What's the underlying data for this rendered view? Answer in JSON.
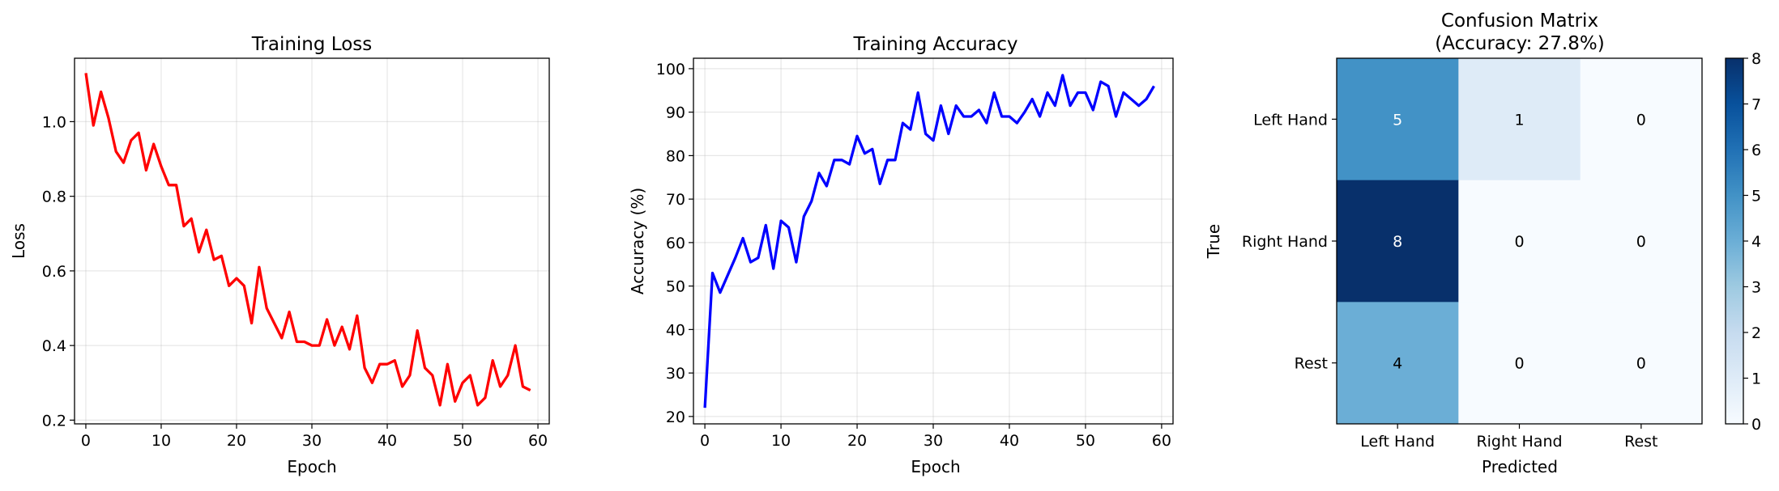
{
  "chart_data": [
    {
      "type": "line",
      "title": "Training Loss",
      "xlabel": "Epoch",
      "ylabel": "Loss",
      "xlim": [
        -1.5,
        61.5
      ],
      "ylim": [
        0.19,
        1.17
      ],
      "xticks": [
        "0",
        "10",
        "20",
        "30",
        "40",
        "50",
        "60"
      ],
      "yticks": [
        "0.2",
        "0.4",
        "0.6",
        "0.8",
        "1.0"
      ],
      "grid": true,
      "series": [
        {
          "color": "#ff0000",
          "x": [
            0,
            1,
            2,
            3,
            4,
            5,
            6,
            7,
            8,
            9,
            10,
            11,
            12,
            13,
            14,
            15,
            16,
            17,
            18,
            19,
            20,
            21,
            22,
            23,
            24,
            25,
            26,
            27,
            28,
            29,
            30,
            31,
            32,
            33,
            34,
            35,
            36,
            37,
            38,
            39,
            40,
            41,
            42,
            43,
            44,
            45,
            46,
            47,
            48,
            49,
            50,
            51,
            52,
            53,
            54,
            55,
            56,
            57,
            58,
            59
          ],
          "values": [
            1.13,
            0.99,
            1.08,
            1.01,
            0.92,
            0.89,
            0.95,
            0.97,
            0.87,
            0.94,
            0.88,
            0.83,
            0.83,
            0.72,
            0.74,
            0.65,
            0.71,
            0.63,
            0.64,
            0.56,
            0.58,
            0.56,
            0.46,
            0.61,
            0.5,
            0.46,
            0.42,
            0.49,
            0.41,
            0.41,
            0.4,
            0.4,
            0.47,
            0.4,
            0.45,
            0.39,
            0.48,
            0.34,
            0.3,
            0.35,
            0.35,
            0.36,
            0.29,
            0.32,
            0.44,
            0.34,
            0.32,
            0.24,
            0.35,
            0.25,
            0.3,
            0.32,
            0.24,
            0.26,
            0.36,
            0.29,
            0.32,
            0.4,
            0.29,
            0.28
          ]
        }
      ]
    },
    {
      "type": "line",
      "title": "Training Accuracy",
      "xlabel": "Epoch",
      "ylabel": "Accuracy (%)",
      "xlim": [
        -1.5,
        61.5
      ],
      "ylim": [
        18.3,
        102.4
      ],
      "xticks": [
        "0",
        "10",
        "20",
        "30",
        "40",
        "50",
        "60"
      ],
      "yticks": [
        "20",
        "30",
        "40",
        "50",
        "60",
        "70",
        "80",
        "90",
        "100"
      ],
      "grid": true,
      "series": [
        {
          "color": "#0000ff",
          "x": [
            0,
            1,
            2,
            3,
            4,
            5,
            6,
            7,
            8,
            9,
            10,
            11,
            12,
            13,
            14,
            15,
            16,
            17,
            18,
            19,
            20,
            21,
            22,
            23,
            24,
            25,
            26,
            27,
            28,
            29,
            30,
            31,
            32,
            33,
            34,
            35,
            36,
            37,
            38,
            39,
            40,
            41,
            42,
            43,
            44,
            45,
            46,
            47,
            48,
            49,
            50,
            51,
            52,
            53,
            54,
            55,
            56,
            57,
            58,
            59
          ],
          "values": [
            22,
            53,
            48.5,
            52.5,
            56.5,
            61,
            55.5,
            56.5,
            64,
            54,
            65,
            63.5,
            55.5,
            66,
            69.5,
            76,
            73,
            79,
            79,
            78,
            84.5,
            80.5,
            81.5,
            73.5,
            79,
            79,
            87.5,
            86,
            94.5,
            85,
            83.5,
            91.5,
            85,
            91.5,
            89,
            89,
            90.5,
            87.5,
            94.5,
            89,
            89,
            87.5,
            90,
            93,
            89,
            94.5,
            91.5,
            98.5,
            91.5,
            94.5,
            94.5,
            90.5,
            97,
            96,
            89,
            94.5,
            93,
            91.5,
            93,
            96
          ]
        }
      ]
    },
    {
      "type": "heatmap",
      "title": "Confusion Matrix",
      "subtitle": "(Accuracy: 27.8%)",
      "xlabel": "Predicted",
      "ylabel": "True",
      "x_categories": [
        "Left Hand",
        "Right Hand",
        "Rest"
      ],
      "y_categories": [
        "Left Hand",
        "Right Hand",
        "Rest"
      ],
      "matrix": [
        [
          5,
          1,
          0
        ],
        [
          8,
          0,
          0
        ],
        [
          4,
          0,
          0
        ]
      ],
      "labels": [
        [
          "5",
          "1",
          "0"
        ],
        [
          "8",
          "0",
          "0"
        ],
        [
          "4",
          "0",
          "0"
        ]
      ],
      "colormap": "Blues",
      "vmin": 0,
      "vmax": 8,
      "colorbar_ticks": [
        "0",
        "1",
        "2",
        "3",
        "4",
        "5",
        "6",
        "7",
        "8"
      ]
    }
  ]
}
